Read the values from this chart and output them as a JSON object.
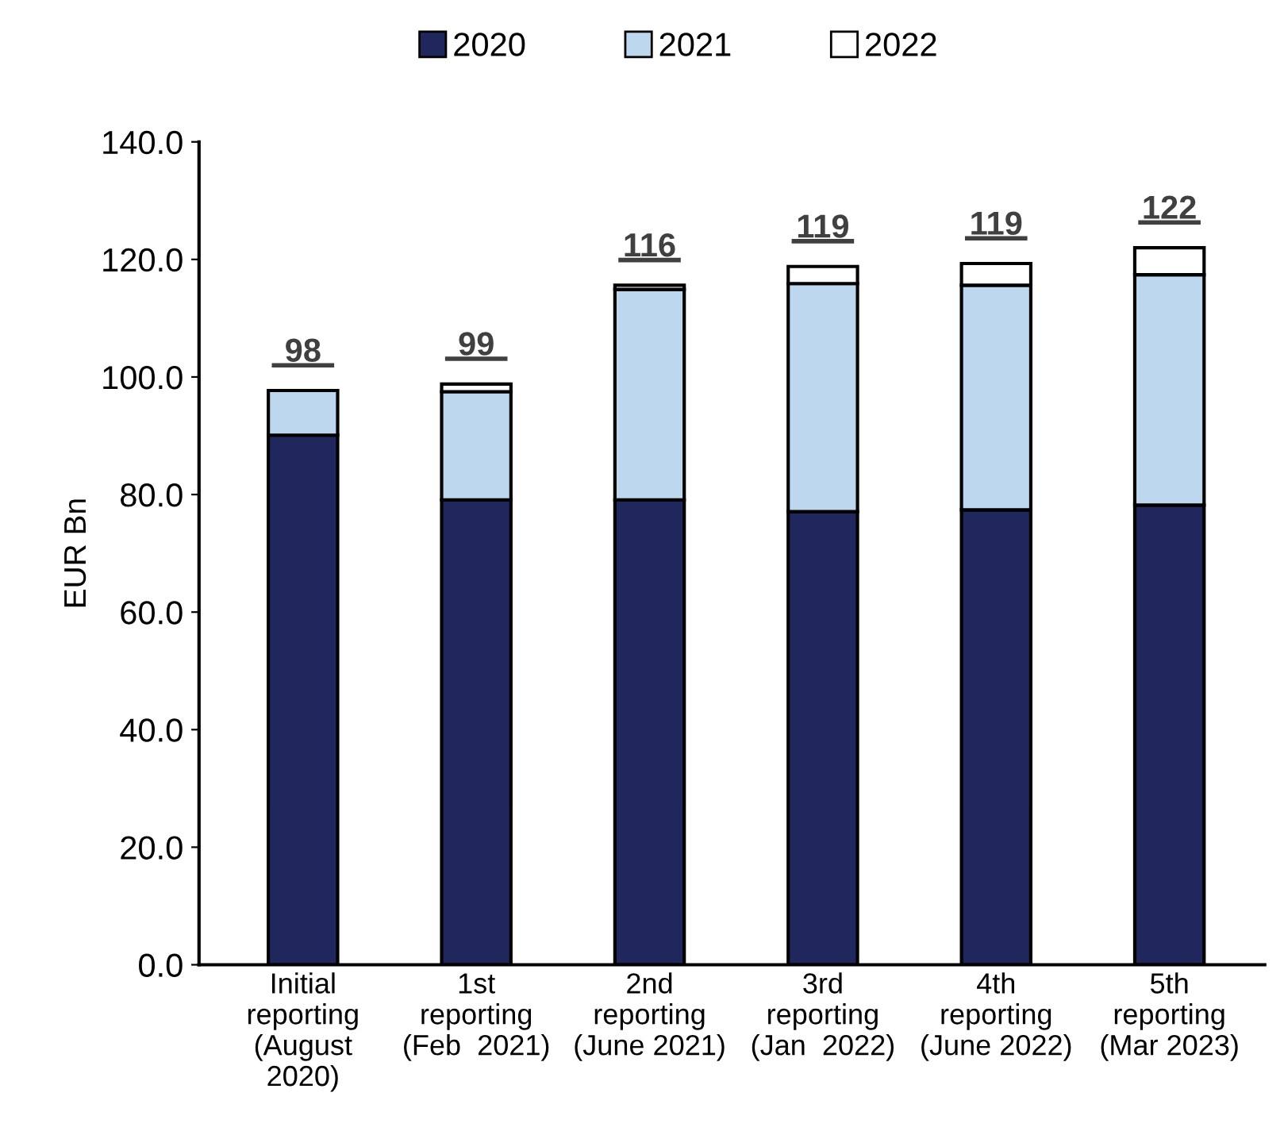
{
  "chart_data": {
    "type": "bar",
    "stacked": true,
    "ylabel": "EUR Bn",
    "categories": [
      "Initial\nreporting\n(August\n2020)",
      "1st\nreporting\n(Feb  2021)",
      "2nd\nreporting\n(June 2021)",
      "3rd\nreporting\n(Jan  2022)",
      "4th\nreporting\n(June 2022)",
      "5th\nreporting\n(Mar 2023)"
    ],
    "series": [
      {
        "name": "2020",
        "color": "#1f275c",
        "values": [
          90.1,
          79.1,
          79.1,
          77.1,
          77.4,
          78.2
        ]
      },
      {
        "name": "2021",
        "color": "#bdd7ee",
        "values": [
          7.6,
          18.4,
          35.8,
          38.8,
          38.2,
          39.2
        ]
      },
      {
        "name": "2022",
        "color": "#ffffff",
        "values": [
          null,
          1.3,
          0.7,
          2.9,
          3.7,
          4.6
        ]
      }
    ],
    "totals": [
      "98",
      "99",
      "116",
      "119",
      "119",
      "122"
    ],
    "ylim": [
      0,
      140
    ],
    "yticks": [
      {
        "value": 0,
        "label": "0.0"
      },
      {
        "value": 20,
        "label": "20.0"
      },
      {
        "value": 40,
        "label": "40.0"
      },
      {
        "value": 60,
        "label": "60.0"
      },
      {
        "value": 80,
        "label": "80.0"
      },
      {
        "value": 100,
        "label": "100.0"
      },
      {
        "value": 120,
        "label": "120.0"
      },
      {
        "value": 140,
        "label": "140.0"
      }
    ],
    "grid": false,
    "legend": "top"
  }
}
